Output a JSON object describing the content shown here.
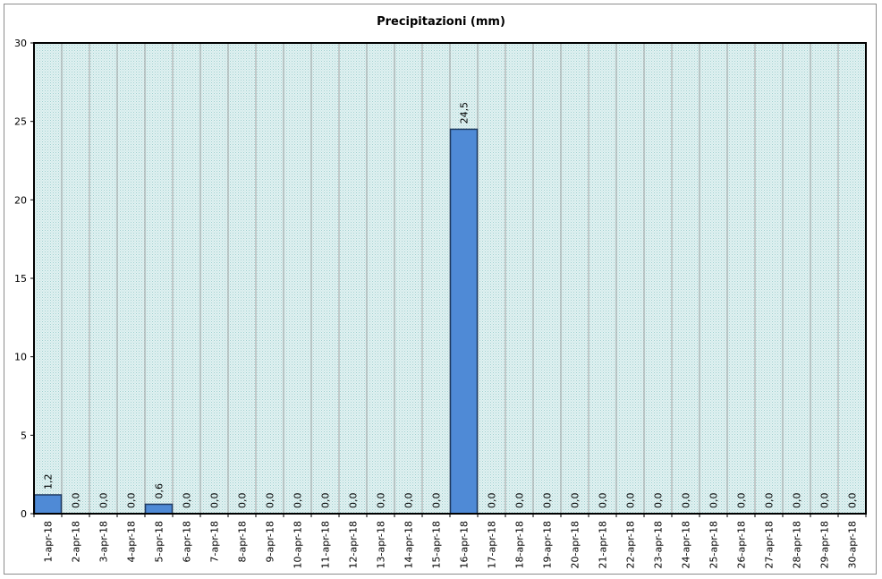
{
  "chart_data": {
    "type": "bar",
    "title": "Precipitazioni (mm)",
    "xlabel": "",
    "ylabel": "",
    "ylim": [
      0,
      30
    ],
    "yticks": [
      0,
      5,
      10,
      15,
      20,
      25,
      30
    ],
    "ytick_labels": [
      "0",
      "5",
      "10",
      "15",
      "20",
      "25",
      "30"
    ],
    "grid": true,
    "legend": "none",
    "categories": [
      "1-apr-18",
      "2-apr-18",
      "3-apr-18",
      "4-apr-18",
      "5-apr-18",
      "6-apr-18",
      "7-apr-18",
      "8-apr-18",
      "9-apr-18",
      "10-apr-18",
      "11-apr-18",
      "12-apr-18",
      "13-apr-18",
      "14-apr-18",
      "15-apr-18",
      "16-apr-18",
      "17-apr-18",
      "18-apr-18",
      "19-apr-18",
      "20-apr-18",
      "21-apr-18",
      "22-apr-18",
      "23-apr-18",
      "24-apr-18",
      "25-apr-18",
      "26-apr-18",
      "27-apr-18",
      "28-apr-18",
      "29-apr-18",
      "30-apr-18"
    ],
    "values": [
      1.2,
      0,
      0,
      0,
      0.6,
      0,
      0,
      0,
      0,
      0,
      0,
      0,
      0,
      0,
      0,
      24.5,
      0,
      0,
      0,
      0,
      0,
      0,
      0,
      0,
      0,
      0,
      0,
      0,
      0,
      0
    ],
    "data_labels": [
      "1,2",
      "0,0",
      "0,0",
      "0,0",
      "0,6",
      "0,0",
      "0,0",
      "0,0",
      "0,0",
      "0,0",
      "0,0",
      "0,0",
      "0,0",
      "0,0",
      "0,0",
      "24,5",
      "0,0",
      "0,0",
      "0,0",
      "0,0",
      "0,0",
      "0,0",
      "0,0",
      "0,0",
      "0,0",
      "0,0",
      "0,0",
      "0,0",
      "0,0",
      "0,0"
    ],
    "colors": {
      "bar_fill": "#4f8ad6",
      "bar_stroke": "#1f3a60",
      "plot_bg": "#d3ecec",
      "grid": "#a0a0a0"
    }
  }
}
